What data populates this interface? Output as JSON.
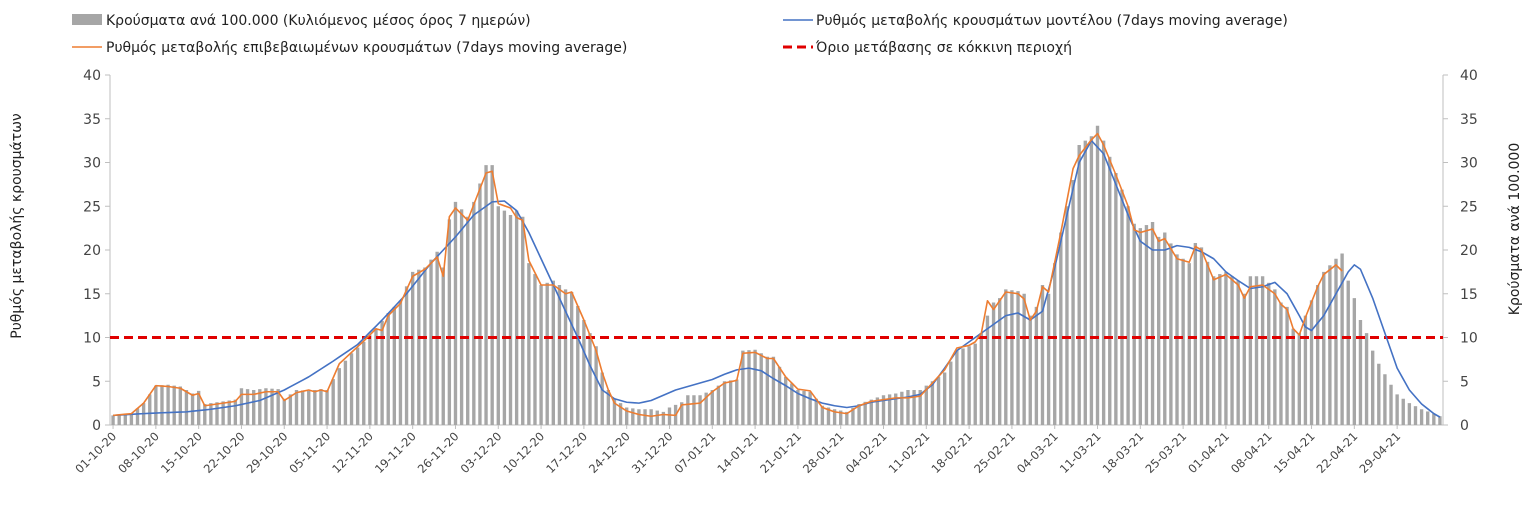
{
  "chart_data": {
    "type": "bar",
    "x_tick_labels": [
      "01-10-20",
      "08-10-20",
      "15-10-20",
      "22-10-20",
      "29-10-20",
      "05-11-20",
      "12-11-20",
      "19-11-20",
      "26-11-20",
      "03-12-20",
      "10-12-20",
      "17-12-20",
      "24-12-20",
      "31-12-20",
      "07-01-21",
      "14-01-21",
      "21-01-21",
      "28-01-21",
      "04-02-21",
      "11-02-21",
      "18-02-21",
      "25-02-21",
      "04-03-21",
      "11-03-21",
      "18-03-21",
      "25-03-21",
      "01-04-21",
      "08-04-21",
      "15-04-21",
      "22-04-21",
      "29-04-21"
    ],
    "ylim": [
      0,
      40
    ],
    "y_ticks": [
      0,
      5,
      10,
      15,
      20,
      25,
      30,
      35,
      40
    ],
    "ylabel_left": "Ρυθμός μεταβολής κρουσμάτων",
    "ylabel_right": "Κρούσματα ανά 100.000",
    "threshold": 10,
    "legend": {
      "bars": "Κρούσματα ανά 100.000 (Κυλιόμενος μέσος όρος 7 ημερών)",
      "model": "Ρυθμός μεταβολής κρουσμάτων μοντέλου (7days moving average)",
      "confirmed": "Ρυθμός μεταβολής επιβεβαιωμένων κρουσμάτων (7days moving average)",
      "threshold": "Όριο μετάβασης σε κόκκινη περιοχή"
    },
    "colors": {
      "bars": "#a6a6a6",
      "model": "#4472c4",
      "confirmed": "#ed7d31",
      "threshold": "#e00000"
    },
    "bar_keypoints": [
      [
        0,
        1.1
      ],
      [
        3,
        1.3
      ],
      [
        5,
        2.5
      ],
      [
        6,
        3.5
      ],
      [
        7,
        4.5
      ],
      [
        9,
        4.6
      ],
      [
        11,
        4.4
      ],
      [
        13,
        3.6
      ],
      [
        14,
        3.9
      ],
      [
        15,
        2.4
      ],
      [
        17,
        2.6
      ],
      [
        20,
        2.9
      ],
      [
        21,
        4.2
      ],
      [
        23,
        4.0
      ],
      [
        25,
        4.2
      ],
      [
        27,
        4.1
      ],
      [
        28,
        3.0
      ],
      [
        30,
        4.0
      ],
      [
        32,
        3.9
      ],
      [
        34,
        4.1
      ],
      [
        35,
        4.0
      ],
      [
        37,
        6.5
      ],
      [
        39,
        8.2
      ],
      [
        41,
        9.5
      ],
      [
        43,
        11.0
      ],
      [
        45,
        12.8
      ],
      [
        47,
        14.2
      ],
      [
        49,
        17.5
      ],
      [
        51,
        18.0
      ],
      [
        53,
        19.8
      ],
      [
        54,
        18.0
      ],
      [
        55,
        23.5
      ],
      [
        56,
        25.5
      ],
      [
        58,
        23.8
      ],
      [
        59,
        25.5
      ],
      [
        61,
        29.7
      ],
      [
        62,
        29.7
      ],
      [
        63,
        25.0
      ],
      [
        65,
        24.0
      ],
      [
        66,
        24.5
      ],
      [
        67,
        23.8
      ],
      [
        68,
        18.5
      ],
      [
        70,
        16.0
      ],
      [
        72,
        16.5
      ],
      [
        74,
        15.5
      ],
      [
        75,
        15.2
      ],
      [
        77,
        12.0
      ],
      [
        79,
        9.0
      ],
      [
        80,
        6.0
      ],
      [
        81,
        4.0
      ],
      [
        82,
        3.0
      ],
      [
        84,
        2.0
      ],
      [
        86,
        1.8
      ],
      [
        88,
        1.8
      ],
      [
        90,
        1.5
      ],
      [
        91,
        2.0
      ],
      [
        93,
        2.6
      ],
      [
        94,
        3.4
      ],
      [
        96,
        3.4
      ],
      [
        98,
        4.0
      ],
      [
        100,
        5.0
      ],
      [
        102,
        5.2
      ],
      [
        103,
        8.5
      ],
      [
        105,
        8.6
      ],
      [
        107,
        7.8
      ],
      [
        108,
        7.8
      ],
      [
        110,
        5.5
      ],
      [
        112,
        4.0
      ],
      [
        114,
        3.8
      ],
      [
        116,
        2.2
      ],
      [
        118,
        1.8
      ],
      [
        120,
        1.5
      ],
      [
        122,
        2.4
      ],
      [
        124,
        2.9
      ],
      [
        126,
        3.4
      ],
      [
        128,
        3.6
      ],
      [
        130,
        4.0
      ],
      [
        132,
        4.0
      ],
      [
        134,
        5.0
      ],
      [
        136,
        6.0
      ],
      [
        138,
        8.5
      ],
      [
        140,
        9.0
      ],
      [
        141,
        9.3
      ],
      [
        142,
        10.5
      ],
      [
        143,
        12.5
      ],
      [
        144,
        14.0
      ],
      [
        145,
        14.5
      ],
      [
        146,
        15.5
      ],
      [
        148,
        15.3
      ],
      [
        149,
        15.0
      ],
      [
        150,
        12.5
      ],
      [
        151,
        13.5
      ],
      [
        152,
        16.0
      ],
      [
        153,
        15.0
      ],
      [
        155,
        22.0
      ],
      [
        157,
        28.0
      ],
      [
        158,
        32.0
      ],
      [
        160,
        33.0
      ],
      [
        161,
        34.2
      ],
      [
        162,
        32.5
      ],
      [
        164,
        28.8
      ],
      [
        166,
        25.0
      ],
      [
        167,
        23.0
      ],
      [
        168,
        22.5
      ],
      [
        170,
        23.2
      ],
      [
        171,
        21.5
      ],
      [
        172,
        22.0
      ],
      [
        174,
        19.5
      ],
      [
        176,
        18.5
      ],
      [
        177,
        20.8
      ],
      [
        178,
        20.3
      ],
      [
        180,
        17.0
      ],
      [
        182,
        17.5
      ],
      [
        184,
        16.5
      ],
      [
        185,
        15.0
      ],
      [
        186,
        17.0
      ],
      [
        188,
        17.0
      ],
      [
        190,
        15.5
      ],
      [
        191,
        14.0
      ],
      [
        192,
        13.5
      ],
      [
        193,
        11.0
      ],
      [
        194,
        10.5
      ],
      [
        195,
        12.5
      ],
      [
        197,
        16.0
      ],
      [
        198,
        17.5
      ],
      [
        200,
        19.0
      ],
      [
        201,
        19.6
      ],
      [
        202,
        16.5
      ],
      [
        203,
        14.5
      ],
      [
        204,
        12.0
      ],
      [
        205,
        10.5
      ],
      [
        206,
        8.5
      ],
      [
        207,
        7.0
      ],
      [
        208,
        5.8
      ],
      [
        209,
        4.6
      ],
      [
        210,
        3.5
      ],
      [
        212,
        2.5
      ],
      [
        214,
        1.8
      ],
      [
        216,
        1.3
      ],
      [
        217,
        1.0
      ]
    ],
    "model_keypoints": [
      [
        0,
        1.1
      ],
      [
        5,
        1.3
      ],
      [
        8,
        1.4
      ],
      [
        12,
        1.5
      ],
      [
        16,
        1.8
      ],
      [
        20,
        2.2
      ],
      [
        24,
        2.8
      ],
      [
        28,
        4.0
      ],
      [
        32,
        5.5
      ],
      [
        36,
        7.3
      ],
      [
        40,
        9.2
      ],
      [
        44,
        12.0
      ],
      [
        48,
        15.0
      ],
      [
        52,
        18.5
      ],
      [
        56,
        21.5
      ],
      [
        59,
        24.0
      ],
      [
        62,
        25.5
      ],
      [
        64,
        25.6
      ],
      [
        66,
        24.5
      ],
      [
        68,
        22.0
      ],
      [
        70,
        19.0
      ],
      [
        72,
        16.0
      ],
      [
        74,
        13.0
      ],
      [
        76,
        10.0
      ],
      [
        78,
        6.8
      ],
      [
        80,
        4.0
      ],
      [
        82,
        3.0
      ],
      [
        84,
        2.6
      ],
      [
        86,
        2.5
      ],
      [
        88,
        2.8
      ],
      [
        90,
        3.4
      ],
      [
        92,
        4.0
      ],
      [
        94,
        4.4
      ],
      [
        96,
        4.8
      ],
      [
        98,
        5.2
      ],
      [
        100,
        5.8
      ],
      [
        102,
        6.3
      ],
      [
        104,
        6.5
      ],
      [
        106,
        6.2
      ],
      [
        108,
        5.3
      ],
      [
        110,
        4.5
      ],
      [
        112,
        3.6
      ],
      [
        114,
        3.0
      ],
      [
        116,
        2.5
      ],
      [
        118,
        2.2
      ],
      [
        120,
        2.0
      ],
      [
        122,
        2.2
      ],
      [
        124,
        2.6
      ],
      [
        126,
        2.8
      ],
      [
        128,
        3.0
      ],
      [
        130,
        3.2
      ],
      [
        132,
        3.5
      ],
      [
        134,
        4.6
      ],
      [
        136,
        6.5
      ],
      [
        138,
        8.5
      ],
      [
        140,
        9.5
      ],
      [
        142,
        10.5
      ],
      [
        144,
        11.5
      ],
      [
        146,
        12.5
      ],
      [
        148,
        12.8
      ],
      [
        150,
        12.0
      ],
      [
        152,
        13.0
      ],
      [
        154,
        18.0
      ],
      [
        156,
        24.0
      ],
      [
        158,
        30.0
      ],
      [
        160,
        32.5
      ],
      [
        162,
        31.0
      ],
      [
        164,
        27.5
      ],
      [
        166,
        24.0
      ],
      [
        168,
        21.0
      ],
      [
        170,
        20.0
      ],
      [
        172,
        20.0
      ],
      [
        174,
        20.5
      ],
      [
        176,
        20.3
      ],
      [
        178,
        19.8
      ],
      [
        180,
        19.0
      ],
      [
        182,
        17.5
      ],
      [
        184,
        16.5
      ],
      [
        186,
        15.6
      ],
      [
        188,
        15.8
      ],
      [
        190,
        16.3
      ],
      [
        192,
        15.0
      ],
      [
        194,
        12.5
      ],
      [
        195,
        11.2
      ],
      [
        196,
        10.8
      ],
      [
        198,
        12.5
      ],
      [
        200,
        15.0
      ],
      [
        202,
        17.5
      ],
      [
        203,
        18.3
      ],
      [
        204,
        17.8
      ],
      [
        206,
        14.5
      ],
      [
        208,
        10.5
      ],
      [
        210,
        6.5
      ],
      [
        212,
        4.0
      ],
      [
        214,
        2.4
      ],
      [
        216,
        1.3
      ],
      [
        217,
        0.9
      ]
    ],
    "confirmed_keypoints": [
      [
        0,
        1.1
      ],
      [
        3,
        1.3
      ],
      [
        5,
        2.5
      ],
      [
        6,
        3.5
      ],
      [
        7,
        4.5
      ],
      [
        9,
        4.4
      ],
      [
        11,
        4.2
      ],
      [
        13,
        3.4
      ],
      [
        14,
        3.6
      ],
      [
        15,
        2.2
      ],
      [
        17,
        2.4
      ],
      [
        20,
        2.7
      ],
      [
        21,
        3.5
      ],
      [
        23,
        3.5
      ],
      [
        25,
        3.8
      ],
      [
        27,
        3.8
      ],
      [
        28,
        2.8
      ],
      [
        30,
        3.7
      ],
      [
        32,
        4.0
      ],
      [
        33,
        3.8
      ],
      [
        34,
        4.0
      ],
      [
        35,
        3.8
      ],
      [
        37,
        7.0
      ],
      [
        39,
        8.3
      ],
      [
        41,
        9.6
      ],
      [
        43,
        11.0
      ],
      [
        44,
        10.8
      ],
      [
        45,
        12.5
      ],
      [
        47,
        13.9
      ],
      [
        49,
        17.0
      ],
      [
        51,
        17.8
      ],
      [
        53,
        19.2
      ],
      [
        54,
        17.0
      ],
      [
        55,
        23.8
      ],
      [
        56,
        24.8
      ],
      [
        58,
        23.4
      ],
      [
        59,
        25.2
      ],
      [
        61,
        28.8
      ],
      [
        62,
        29.0
      ],
      [
        63,
        25.3
      ],
      [
        65,
        24.8
      ],
      [
        66,
        23.7
      ],
      [
        67,
        23.4
      ],
      [
        68,
        18.8
      ],
      [
        70,
        16.0
      ],
      [
        72,
        16.0
      ],
      [
        74,
        15.0
      ],
      [
        75,
        15.2
      ],
      [
        77,
        12.0
      ],
      [
        79,
        8.5
      ],
      [
        80,
        6.0
      ],
      [
        81,
        4.0
      ],
      [
        82,
        2.5
      ],
      [
        84,
        1.6
      ],
      [
        86,
        1.2
      ],
      [
        88,
        1.0
      ],
      [
        90,
        1.2
      ],
      [
        92,
        1.1
      ],
      [
        93,
        2.3
      ],
      [
        96,
        2.5
      ],
      [
        98,
        3.8
      ],
      [
        100,
        4.8
      ],
      [
        102,
        5.1
      ],
      [
        103,
        8.2
      ],
      [
        105,
        8.3
      ],
      [
        107,
        7.6
      ],
      [
        108,
        7.6
      ],
      [
        110,
        5.5
      ],
      [
        112,
        4.1
      ],
      [
        114,
        3.9
      ],
      [
        116,
        2.0
      ],
      [
        118,
        1.5
      ],
      [
        120,
        1.3
      ],
      [
        122,
        2.2
      ],
      [
        124,
        2.7
      ],
      [
        126,
        2.9
      ],
      [
        128,
        3.1
      ],
      [
        130,
        3.1
      ],
      [
        132,
        3.3
      ],
      [
        134,
        4.8
      ],
      [
        136,
        6.3
      ],
      [
        138,
        8.8
      ],
      [
        140,
        9.1
      ],
      [
        141,
        9.5
      ],
      [
        142,
        10.5
      ],
      [
        143,
        14.2
      ],
      [
        144,
        13.2
      ],
      [
        146,
        15.2
      ],
      [
        148,
        15.0
      ],
      [
        149,
        14.4
      ],
      [
        150,
        12.0
      ],
      [
        151,
        13.0
      ],
      [
        152,
        15.8
      ],
      [
        153,
        15.2
      ],
      [
        155,
        22.0
      ],
      [
        157,
        29.3
      ],
      [
        158,
        30.8
      ],
      [
        160,
        32.6
      ],
      [
        161,
        33.3
      ],
      [
        162,
        32.0
      ],
      [
        164,
        28.6
      ],
      [
        166,
        25.0
      ],
      [
        167,
        22.3
      ],
      [
        168,
        22.0
      ],
      [
        170,
        22.4
      ],
      [
        171,
        21.0
      ],
      [
        172,
        21.3
      ],
      [
        174,
        19.0
      ],
      [
        176,
        18.6
      ],
      [
        177,
        20.4
      ],
      [
        178,
        20.0
      ],
      [
        180,
        16.6
      ],
      [
        182,
        17.2
      ],
      [
        184,
        16.0
      ],
      [
        185,
        14.5
      ],
      [
        186,
        15.8
      ],
      [
        188,
        16.0
      ],
      [
        190,
        15.0
      ],
      [
        191,
        13.8
      ],
      [
        192,
        13.2
      ],
      [
        193,
        11.0
      ],
      [
        194,
        10.3
      ],
      [
        195,
        12.3
      ],
      [
        197,
        15.8
      ],
      [
        198,
        17.2
      ],
      [
        200,
        18.3
      ],
      [
        201,
        17.6
      ]
    ]
  }
}
